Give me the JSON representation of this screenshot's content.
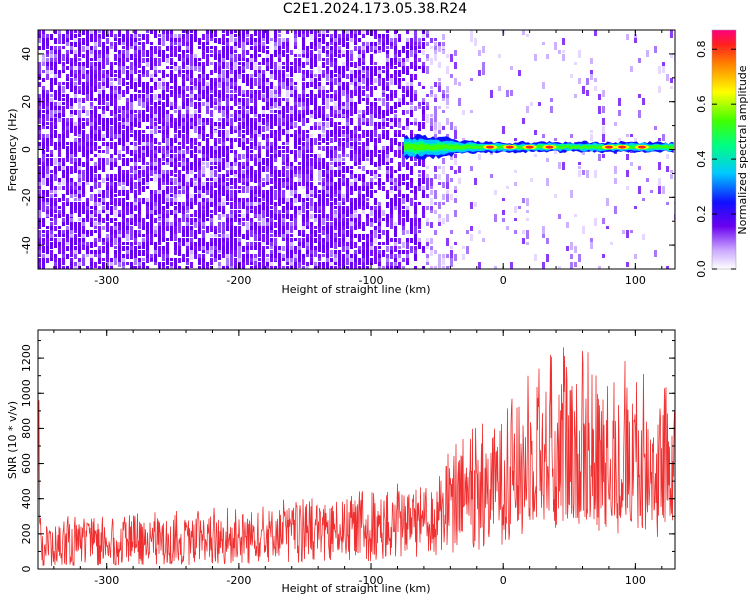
{
  "title": "C2E1.2024.173.05.38.R24",
  "colors": {
    "snr_line": "#f03030",
    "spectrogram_noise": "#6a00f0",
    "frame": "#000000"
  },
  "chart_data": [
    {
      "type": "heatmap",
      "description_of_structure": "spectrogram: broadband purple noise below about -45 km; narrow band near 0 Hz from about -75 km onward",
      "xlabel": "Height of straight line (km)",
      "ylabel": "Frequency (Hz)",
      "xlim": [
        -352,
        130
      ],
      "ylim": [
        -50,
        50
      ],
      "xticks": [
        "-300",
        "-200",
        "-100",
        "0",
        "100"
      ],
      "yticks": [
        "-40",
        "-20",
        "0",
        "20",
        "40"
      ],
      "colorbar": {
        "label": "Normalized spectral amplitude",
        "range": [
          0.0,
          0.87
        ],
        "ticks": [
          "0.0",
          "0.2",
          "0.4",
          "0.6",
          "0.8"
        ],
        "colormap": "rainbow"
      },
      "band": {
        "start_km": -75,
        "center_hz": 1,
        "segments": [
          {
            "x_km": -75,
            "half_width_hz": 5
          },
          {
            "x_km": -50,
            "half_width_hz": 4
          },
          {
            "x_km": -30,
            "half_width_hz": 2.5
          },
          {
            "x_km": 0,
            "half_width_hz": 2
          },
          {
            "x_km": 130,
            "half_width_hz": 2
          }
        ],
        "hot_spots_km": [
          -10,
          5,
          20,
          35,
          80,
          90,
          105
        ]
      },
      "grid": false
    },
    {
      "type": "line",
      "xlabel": "Height of straight line (km)",
      "ylabel": "SNR (10 * v/v)",
      "xlim": [
        -352,
        130
      ],
      "ylim": [
        0,
        1360
      ],
      "xticks": [
        "-300",
        "-200",
        "-100",
        "0",
        "100"
      ],
      "yticks": [
        "0",
        "200",
        "400",
        "600",
        "800",
        "1000",
        "1200"
      ],
      "series": [
        {
          "envelope": [
            {
              "x": -350,
              "low": 20,
              "mean": 140,
              "high": 270
            },
            {
              "x": -300,
              "low": 25,
              "mean": 150,
              "high": 280
            },
            {
              "x": -250,
              "low": 30,
              "mean": 160,
              "high": 300
            },
            {
              "x": -200,
              "low": 40,
              "mean": 190,
              "high": 340
            },
            {
              "x": -150,
              "low": 50,
              "mean": 220,
              "high": 380
            },
            {
              "x": -100,
              "low": 60,
              "mean": 240,
              "high": 420
            },
            {
              "x": -60,
              "low": 80,
              "mean": 290,
              "high": 480
            },
            {
              "x": -40,
              "low": 120,
              "mean": 380,
              "high": 650
            },
            {
              "x": -20,
              "low": 150,
              "mean": 430,
              "high": 780
            },
            {
              "x": 0,
              "low": 200,
              "mean": 520,
              "high": 950
            },
            {
              "x": 20,
              "low": 280,
              "mean": 620,
              "high": 1100
            },
            {
              "x": 50,
              "low": 320,
              "mean": 680,
              "high": 1250
            },
            {
              "x": 80,
              "low": 280,
              "mean": 620,
              "high": 1150
            },
            {
              "x": 100,
              "low": 250,
              "mean": 580,
              "high": 1050
            },
            {
              "x": 130,
              "low": 220,
              "mean": 560,
              "high": 980
            }
          ]
        }
      ],
      "grid": false
    }
  ]
}
